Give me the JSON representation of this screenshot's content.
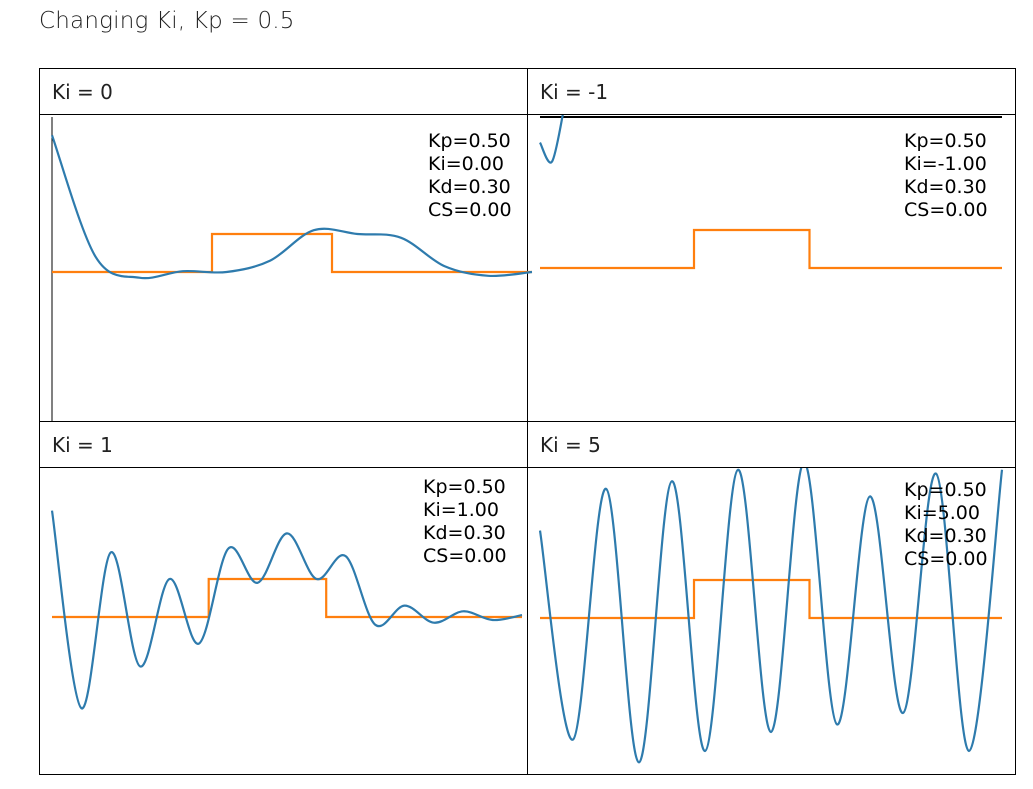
{
  "title": "Changing Ki, Kp = 0.5",
  "colors": {
    "response": "#2e7bad",
    "setpoint": "#ff7f0e"
  },
  "panels": [
    {
      "label": "Ki = 0",
      "params": [
        "Kp=0.50",
        "Ki=0.00",
        "Kd=0.30",
        "CS=0.00"
      ]
    },
    {
      "label": "Ki = -1",
      "params": [
        "Kp=0.50",
        "Ki=-1.00",
        "Kd=0.30",
        "CS=0.00"
      ]
    },
    {
      "label": "Ki = 1",
      "params": [
        "Kp=0.50",
        "Ki=1.00",
        "Kd=0.30",
        "CS=0.00"
      ]
    },
    {
      "label": "Ki = 5",
      "params": [
        "Kp=0.50",
        "Ki=5.00",
        "Kd=0.30",
        "CS=0.00"
      ]
    }
  ],
  "chart_data": [
    {
      "type": "line",
      "series": [
        {
          "values": [
            0,
            0,
            0,
            0,
            1,
            1,
            1,
            0,
            0,
            0,
            0,
            0
          ]
        },
        {
          "values": [
            3.6,
            0.4,
            -0.15,
            0.02,
            0.0,
            0.3,
            1.1,
            1.0,
            0.9,
            0.15,
            -0.1,
            0.0
          ]
        }
      ]
    },
    {
      "type": "line",
      "series": [
        {
          "values": [
            0,
            0,
            0,
            0,
            1,
            1,
            1,
            0,
            0,
            0,
            0,
            0
          ]
        },
        {
          "values": [
            3.3,
            2.8,
            4.2
          ]
        }
      ]
    },
    {
      "type": "line",
      "series": [
        {
          "values": [
            0,
            0,
            0,
            0,
            1,
            1,
            1,
            0,
            0,
            0,
            0,
            0
          ]
        },
        {
          "values": [
            2.8,
            -2.4,
            1.7,
            -1.3,
            1.0,
            -0.7,
            1.8,
            0.9,
            2.2,
            1.0,
            1.6,
            -0.2,
            0.3,
            -0.15,
            0.15,
            -0.08,
            0.05
          ]
        }
      ]
    },
    {
      "type": "line",
      "series": [
        {
          "values": [
            0,
            0,
            0,
            0,
            1,
            1,
            1,
            0,
            0,
            0,
            0,
            0
          ]
        },
        {
          "values": [
            2.3,
            -3.2,
            3.4,
            -3.8,
            3.6,
            -3.5,
            3.9,
            -3.0,
            4.1,
            -2.8,
            3.2,
            -2.5,
            3.8,
            -3.5,
            3.9
          ]
        }
      ]
    }
  ]
}
